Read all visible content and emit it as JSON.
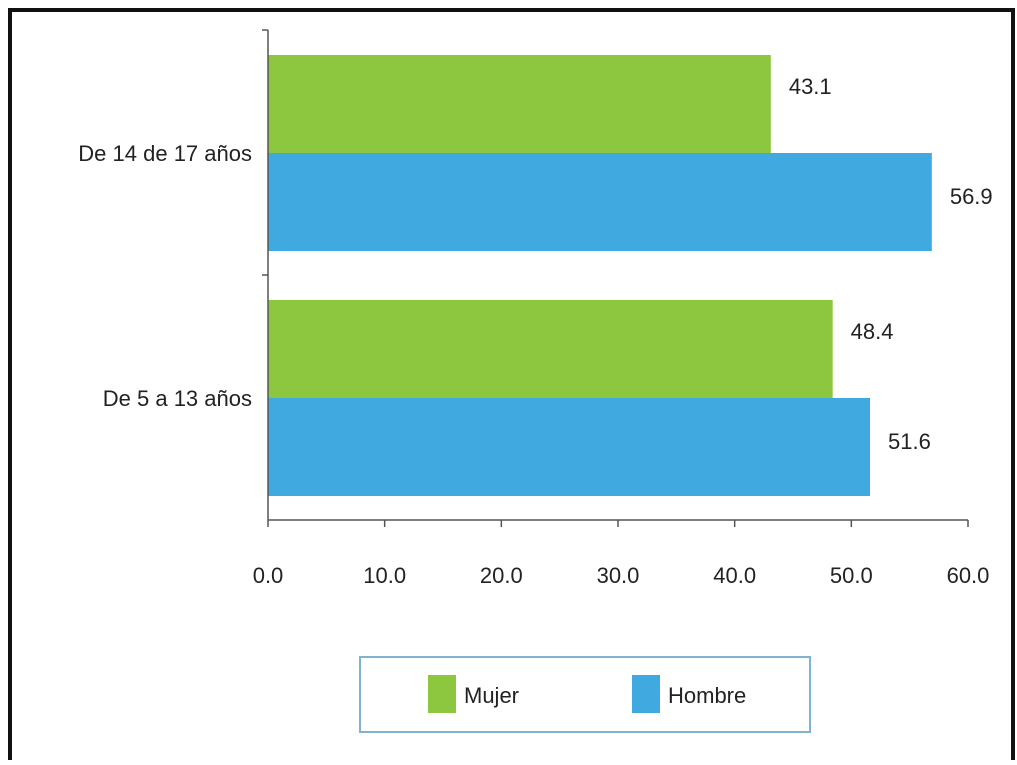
{
  "chart_data": {
    "type": "bar",
    "orientation": "horizontal",
    "title": "",
    "xlabel": "",
    "ylabel": "",
    "categories": [
      "De  14 de 17 años",
      "De  5 a 13 años"
    ],
    "series": [
      {
        "name": "Mujer",
        "color": "#8dc63f",
        "values": [
          43.1,
          48.4
        ],
        "labels": [
          "43.1",
          "48.4"
        ]
      },
      {
        "name": "Hombre",
        "color": "#3fa9e0",
        "values": [
          56.9,
          51.6
        ],
        "labels": [
          "56.9",
          "51.6"
        ]
      }
    ],
    "xlim": [
      0,
      60
    ],
    "xticks": [
      "0.0",
      "10.0",
      "20.0",
      "30.0",
      "40.0",
      "50.0",
      "60.0"
    ],
    "grid": false,
    "legend": {
      "position": "bottom",
      "border_color": "#7fb3cf"
    }
  }
}
